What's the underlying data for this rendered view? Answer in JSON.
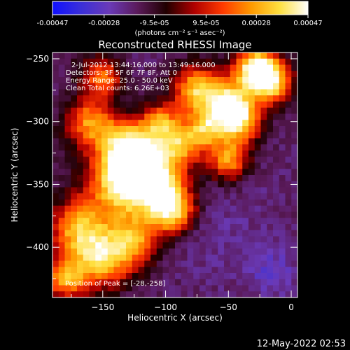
{
  "colorbar": {
    "tick_labels": [
      "-0.00047",
      "-0.00028",
      "-9.5e-05",
      "9.5e-05",
      "0.00028",
      "0.00047"
    ],
    "tick_values": [
      -0.00047,
      -0.00028,
      -9.5e-05,
      9.5e-05,
      0.00028,
      0.00047
    ],
    "range": [
      -0.00047,
      0.00047
    ],
    "units_label": "(photons cm⁻² s⁻¹ asec⁻²)",
    "colormap_stops": [
      "#1010ff",
      "#3a2fd8",
      "#6a3ab8",
      "#5a1a5a",
      "#200000",
      "#b00000",
      "#ff3a00",
      "#ff9a00",
      "#ffe040",
      "#ffffff"
    ]
  },
  "chart_data": {
    "type": "heatmap",
    "title": "Reconstructed RHESSI Image",
    "xlabel": "Heliocentric X (arcsec)",
    "ylabel": "Heliocentric Y (arcsec)",
    "xlim": [
      -190,
      5
    ],
    "ylim": [
      -440,
      -245
    ],
    "x_ticks": [
      -150,
      -100,
      -50,
      0
    ],
    "y_ticks": [
      -250,
      -300,
      -350,
      -400
    ],
    "x_tick_labels": [
      "−150",
      "−100",
      "−50",
      "0"
    ],
    "y_tick_labels": [
      "−250",
      "−300",
      "−350",
      "−400"
    ],
    "annotations": [
      "2-Jul-2012 13:44:16.000 to 13:49:16.000",
      "Detectors: 3F 5F 6F 7F 8F, Att 0",
      "Energy Range: 25.0 - 50.0 keV",
      "Clean     Total counts: 6.26E+03"
    ],
    "peak_label": "Position of Peak = [-28,-258]",
    "peak_position": [
      -28,
      -258
    ],
    "bright_sources": [
      {
        "x": -28,
        "y": -258,
        "value": 0.00047,
        "radius": 12
      },
      {
        "x": -112,
        "y": -340,
        "value": 0.00042,
        "radius": 18
      },
      {
        "x": -95,
        "y": -370,
        "value": 0.0004,
        "radius": 13
      },
      {
        "x": -135,
        "y": -350,
        "value": 0.00034,
        "radius": 20
      },
      {
        "x": -130,
        "y": -320,
        "value": 0.0003,
        "radius": 15
      },
      {
        "x": -75,
        "y": -275,
        "value": 0.00032,
        "radius": 14
      },
      {
        "x": -50,
        "y": -285,
        "value": 0.0003,
        "radius": 13
      },
      {
        "x": -50,
        "y": -330,
        "value": 0.00026,
        "radius": 12
      },
      {
        "x": -40,
        "y": -300,
        "value": 0.00028,
        "radius": 12
      },
      {
        "x": -160,
        "y": -300,
        "value": 0.00024,
        "radius": 14
      },
      {
        "x": -150,
        "y": -265,
        "value": 0.0002,
        "radius": 11
      },
      {
        "x": -170,
        "y": -385,
        "value": 0.00028,
        "radius": 16
      },
      {
        "x": -150,
        "y": -410,
        "value": 0.0003,
        "radius": 16
      },
      {
        "x": -180,
        "y": -425,
        "value": 0.00026,
        "radius": 12
      },
      {
        "x": -125,
        "y": -395,
        "value": 0.00022,
        "radius": 14
      },
      {
        "x": -15,
        "y": -270,
        "value": 0.0003,
        "radius": 12
      },
      {
        "x": -65,
        "y": -305,
        "value": 0.00018,
        "radius": 10
      },
      {
        "x": -85,
        "y": -315,
        "value": 0.00024,
        "radius": 12
      },
      {
        "x": -105,
        "y": -300,
        "value": 0.0002,
        "radius": 10
      }
    ],
    "dark_sources": [
      {
        "x": -60,
        "y": -390,
        "value": -0.00022,
        "radius": 28
      },
      {
        "x": -15,
        "y": -420,
        "value": -0.00028,
        "radius": 14
      },
      {
        "x": -20,
        "y": -350,
        "value": -0.00018,
        "radius": 22
      },
      {
        "x": -100,
        "y": -425,
        "value": -0.00016,
        "radius": 25
      },
      {
        "x": -180,
        "y": -320,
        "value": -0.00014,
        "radius": 15
      },
      {
        "x": -170,
        "y": -250,
        "value": -0.00012,
        "radius": 14
      }
    ]
  },
  "footer": {
    "timestamp": "12-May-2022 02:53"
  }
}
